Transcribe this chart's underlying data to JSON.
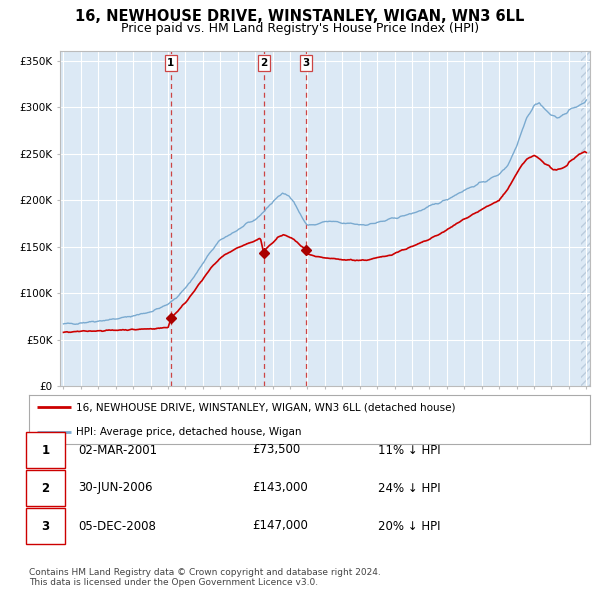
{
  "title": "16, NEWHOUSE DRIVE, WINSTANLEY, WIGAN, WN3 6LL",
  "subtitle": "Price paid vs. HM Land Registry's House Price Index (HPI)",
  "background_color": "#ffffff",
  "plot_bg_color": "#dce9f5",
  "hpi_color": "#7aaad0",
  "price_color": "#cc0000",
  "marker_color": "#aa0000",
  "vline_color": "#cc4444",
  "grid_color": "#ffffff",
  "ylim": [
    0,
    360000
  ],
  "yticks": [
    0,
    50000,
    100000,
    150000,
    200000,
    250000,
    300000,
    350000
  ],
  "ytick_labels": [
    "£0",
    "£50K",
    "£100K",
    "£150K",
    "£200K",
    "£250K",
    "£300K",
    "£350K"
  ],
  "legend_hpi_label": "HPI: Average price, detached house, Wigan",
  "legend_price_label": "16, NEWHOUSE DRIVE, WINSTANLEY, WIGAN, WN3 6LL (detached house)",
  "sale_dates": [
    2001.163,
    2006.497,
    2008.922
  ],
  "sale_prices": [
    73500,
    143000,
    147000
  ],
  "sale_labels": [
    "1",
    "2",
    "3"
  ],
  "table_entries": [
    {
      "label": "1",
      "date": "02-MAR-2001",
      "price": "£73,500",
      "note": "11% ↓ HPI"
    },
    {
      "label": "2",
      "date": "30-JUN-2006",
      "price": "£143,000",
      "note": "24% ↓ HPI"
    },
    {
      "label": "3",
      "date": "05-DEC-2008",
      "price": "£147,000",
      "note": "20% ↓ HPI"
    }
  ],
  "footer1": "Contains HM Land Registry data © Crown copyright and database right 2024.",
  "footer2": "This data is licensed under the Open Government Licence v3.0.",
  "x_start_year": 1995,
  "x_end_year": 2025
}
